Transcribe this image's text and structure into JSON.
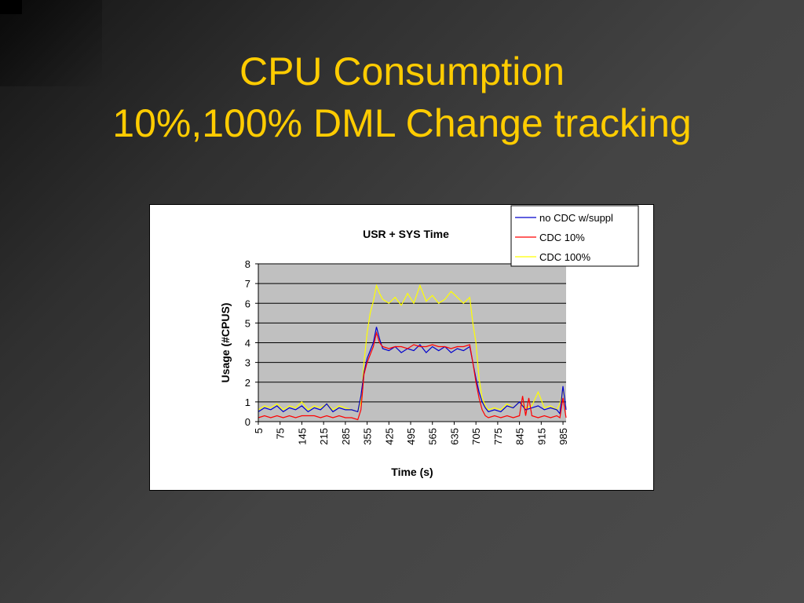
{
  "slide": {
    "title_line1": "CPU Consumption",
    "title_line2": "10%,100% DML Change tracking"
  },
  "colors": {
    "title": "#ffcc00",
    "plot_bg": "#c0c0c0",
    "series": [
      "#0000cc",
      "#ff0000",
      "#ffff00"
    ]
  },
  "chart_data": {
    "type": "line",
    "title": "USR + SYS Time",
    "xlabel": "Time (s)",
    "ylabel": "Usage (#CPUS)",
    "ylim": [
      0,
      8
    ],
    "yticks": [
      "0",
      "1",
      "2",
      "3",
      "4",
      "5",
      "6",
      "7",
      "8"
    ],
    "xticks": [
      "5",
      "75",
      "145",
      "215",
      "285",
      "355",
      "425",
      "495",
      "565",
      "635",
      "705",
      "775",
      "845",
      "915",
      "985"
    ],
    "xlim": [
      5,
      995
    ],
    "grid": true,
    "legend_position": "top-right",
    "series": [
      {
        "name": "no CDC w/suppl",
        "color": "#0000cc",
        "x": [
          5,
          25,
          45,
          65,
          85,
          105,
          125,
          145,
          165,
          185,
          205,
          225,
          245,
          265,
          285,
          305,
          325,
          335,
          345,
          355,
          365,
          375,
          385,
          395,
          405,
          425,
          445,
          465,
          485,
          505,
          525,
          545,
          565,
          585,
          605,
          625,
          645,
          665,
          685,
          695,
          705,
          715,
          725,
          735,
          745,
          765,
          785,
          805,
          825,
          845,
          865,
          885,
          905,
          925,
          945,
          965,
          975,
          985,
          995
        ],
        "values": [
          0.5,
          0.7,
          0.6,
          0.8,
          0.5,
          0.7,
          0.6,
          0.8,
          0.5,
          0.7,
          0.6,
          0.9,
          0.5,
          0.7,
          0.6,
          0.6,
          0.5,
          1.3,
          2.5,
          3.2,
          3.6,
          4.0,
          4.8,
          4.2,
          3.7,
          3.6,
          3.8,
          3.5,
          3.7,
          3.6,
          3.9,
          3.5,
          3.8,
          3.6,
          3.8,
          3.5,
          3.7,
          3.6,
          3.8,
          3.0,
          2.2,
          1.5,
          1.0,
          0.7,
          0.5,
          0.6,
          0.5,
          0.8,
          0.7,
          1.0,
          0.6,
          0.7,
          0.8,
          0.6,
          0.7,
          0.6,
          0.4,
          1.8,
          0.6
        ]
      },
      {
        "name": "CDC 10%",
        "color": "#ff0000",
        "x": [
          5,
          25,
          45,
          65,
          85,
          105,
          125,
          145,
          165,
          185,
          205,
          225,
          245,
          265,
          285,
          305,
          325,
          335,
          345,
          355,
          365,
          375,
          385,
          395,
          405,
          425,
          445,
          465,
          485,
          505,
          525,
          545,
          565,
          585,
          605,
          625,
          645,
          665,
          685,
          695,
          705,
          715,
          725,
          735,
          745,
          765,
          785,
          805,
          825,
          845,
          855,
          865,
          875,
          885,
          905,
          925,
          945,
          965,
          975,
          985,
          995
        ],
        "values": [
          0.2,
          0.3,
          0.2,
          0.3,
          0.2,
          0.3,
          0.2,
          0.3,
          0.3,
          0.3,
          0.2,
          0.3,
          0.2,
          0.3,
          0.2,
          0.2,
          0.1,
          0.6,
          2.4,
          3.0,
          3.4,
          3.8,
          4.5,
          4.0,
          3.8,
          3.7,
          3.8,
          3.8,
          3.7,
          3.9,
          3.8,
          3.8,
          3.9,
          3.8,
          3.8,
          3.7,
          3.8,
          3.8,
          3.9,
          3.0,
          2.0,
          1.2,
          0.6,
          0.3,
          0.2,
          0.3,
          0.2,
          0.3,
          0.2,
          0.3,
          1.3,
          0.3,
          1.2,
          0.3,
          0.2,
          0.3,
          0.2,
          0.3,
          0.2,
          1.2,
          0.2
        ]
      },
      {
        "name": "CDC 100%",
        "color": "#ffff00",
        "x": [
          5,
          25,
          45,
          65,
          85,
          105,
          125,
          145,
          165,
          185,
          205,
          225,
          245,
          265,
          285,
          305,
          325,
          335,
          345,
          355,
          365,
          375,
          385,
          395,
          405,
          425,
          445,
          465,
          485,
          505,
          525,
          545,
          565,
          585,
          605,
          625,
          645,
          665,
          685,
          695,
          705,
          715,
          725,
          735,
          745,
          765,
          785,
          805,
          825,
          845,
          865,
          885,
          905,
          925,
          945,
          965,
          975,
          985,
          995
        ],
        "values": [
          0.6,
          0.8,
          0.7,
          0.9,
          0.6,
          0.8,
          0.7,
          1.0,
          0.6,
          0.8,
          0.7,
          0.9,
          0.6,
          0.8,
          0.7,
          0.6,
          0.5,
          1.0,
          3.0,
          4.5,
          5.5,
          6.1,
          6.9,
          6.5,
          6.2,
          6.0,
          6.3,
          5.9,
          6.5,
          6.0,
          6.9,
          6.1,
          6.4,
          6.0,
          6.2,
          6.6,
          6.3,
          6.0,
          6.3,
          5.0,
          4.0,
          2.2,
          1.2,
          0.8,
          0.6,
          0.7,
          0.6,
          0.9,
          0.7,
          1.0,
          0.7,
          0.8,
          1.5,
          0.7,
          0.8,
          0.6,
          0.9,
          1.6,
          0.7
        ]
      }
    ]
  }
}
